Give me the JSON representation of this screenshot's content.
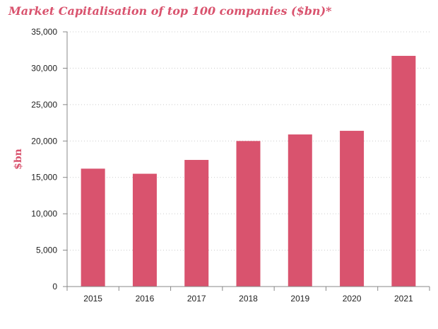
{
  "chart_data": {
    "type": "bar",
    "title": "Market Capitalisation of top 100 companies ($bn)*",
    "xlabel": "",
    "ylabel": "$bn",
    "categories": [
      "2015",
      "2016",
      "2017",
      "2018",
      "2019",
      "2020",
      "2021"
    ],
    "values": [
      16200,
      15500,
      17400,
      20000,
      20900,
      21400,
      31700
    ],
    "ylim": [
      0,
      35000
    ],
    "yticks": [
      0,
      5000,
      10000,
      15000,
      20000,
      25000,
      30000,
      35000
    ],
    "ytick_labels": [
      "0",
      "5,000",
      "10,000",
      "15,000",
      "20,000",
      "25,000",
      "30,000",
      "35,000"
    ],
    "grid": true,
    "legend": "none",
    "colors": {
      "bar": "#d9536e",
      "title": "#d9536e",
      "grid": "#cccccc",
      "axis": "#888888"
    }
  }
}
